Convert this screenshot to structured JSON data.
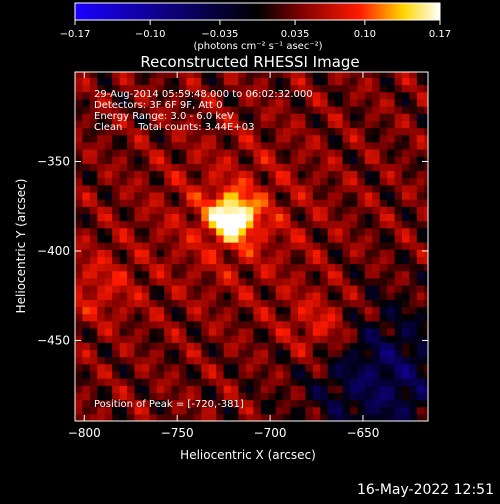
{
  "chart_data": {
    "type": "heatmap",
    "title": "Reconstructed RHESSI Image",
    "xlabel": "Heliocentric X (arcsec)",
    "ylabel": "Heliocentric Y (arcsec)",
    "xlim": [
      -805,
      -615
    ],
    "ylim": [
      -495,
      -300
    ],
    "x_ticks": [
      -800,
      -750,
      -700,
      -650
    ],
    "y_ticks": [
      -350,
      -400,
      -450
    ],
    "colorbar": {
      "min": -0.17,
      "max": 0.17,
      "ticks": [
        -0.17,
        -0.1,
        -0.035,
        0.035,
        0.1,
        0.17
      ],
      "tick_labels": [
        "−0.17",
        "−0.10",
        "−0.035",
        "0.035",
        "0.10",
        "0.17"
      ],
      "units_label": "(photons cm⁻² s⁻¹ asec⁻²)",
      "colors": [
        "#1a00ff",
        "#000000",
        "#800000",
        "#ff1a00",
        "#ffd700",
        "#ffffff"
      ]
    },
    "annotations": [
      "29-Aug-2014 05:59:48.000 to 06:02:32.000",
      "Detectors: 3F 6F 9F, Att 0",
      "Energy Range: 3.0 - 6.0 keV",
      "Clean     Total counts: 3.44E+03"
    ],
    "peak_label": "Position of Peak = [-720,-381]",
    "peak": {
      "x": -720,
      "y": -381,
      "value": 0.17
    },
    "secondary_sources": [
      {
        "x": -672,
        "y": -443,
        "value": 0.06
      },
      {
        "x": -792,
        "y": -420,
        "value": 0.04
      }
    ],
    "background_level": 0.03,
    "negative_region": {
      "x": -640,
      "y": -470,
      "value": -0.05
    }
  },
  "footer": {
    "date": "16-May-2022 12:51"
  }
}
